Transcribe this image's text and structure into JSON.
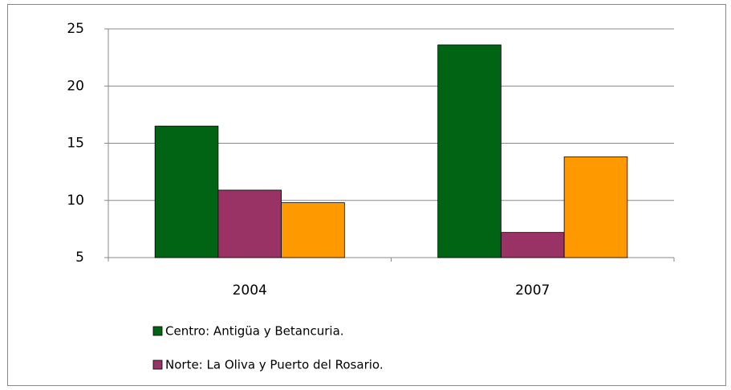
{
  "chart_data": {
    "type": "bar",
    "categories": [
      "2004",
      "2007"
    ],
    "series": [
      {
        "name": "Centro: Antigüa y Betancuria.",
        "color": "#006414",
        "values": [
          16.5,
          23.6
        ]
      },
      {
        "name": "Norte: La Oliva y Puerto del Rosario.",
        "color": "#993366",
        "values": [
          10.9,
          7.2
        ]
      },
      {
        "color": "#ff9900",
        "values": [
          9.8,
          13.8
        ]
      }
    ],
    "ylim": [
      5,
      25
    ],
    "yticks": [
      5,
      10,
      15,
      20,
      25
    ],
    "grid": true
  }
}
